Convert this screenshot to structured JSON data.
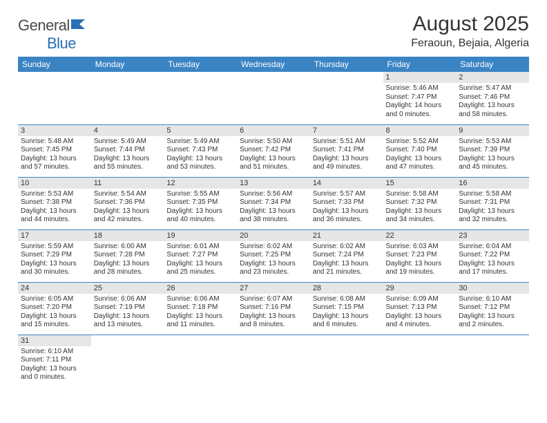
{
  "logo": {
    "text1": "General",
    "text2": "Blue"
  },
  "title": "August 2025",
  "location": "Feraoun, Bejaia, Algeria",
  "weekdays": [
    "Sunday",
    "Monday",
    "Tuesday",
    "Wednesday",
    "Thursday",
    "Friday",
    "Saturday"
  ],
  "header_bg": "#3b84c4",
  "daynum_bg": "#e6e6e6",
  "row_border": "#3b84c4",
  "weeks": [
    [
      null,
      null,
      null,
      null,
      null,
      {
        "d": "1",
        "sr": "5:46 AM",
        "ss": "7:47 PM",
        "dl": "14 hours and 0 minutes."
      },
      {
        "d": "2",
        "sr": "5:47 AM",
        "ss": "7:46 PM",
        "dl": "13 hours and 58 minutes."
      }
    ],
    [
      {
        "d": "3",
        "sr": "5:48 AM",
        "ss": "7:45 PM",
        "dl": "13 hours and 57 minutes."
      },
      {
        "d": "4",
        "sr": "5:49 AM",
        "ss": "7:44 PM",
        "dl": "13 hours and 55 minutes."
      },
      {
        "d": "5",
        "sr": "5:49 AM",
        "ss": "7:43 PM",
        "dl": "13 hours and 53 minutes."
      },
      {
        "d": "6",
        "sr": "5:50 AM",
        "ss": "7:42 PM",
        "dl": "13 hours and 51 minutes."
      },
      {
        "d": "7",
        "sr": "5:51 AM",
        "ss": "7:41 PM",
        "dl": "13 hours and 49 minutes."
      },
      {
        "d": "8",
        "sr": "5:52 AM",
        "ss": "7:40 PM",
        "dl": "13 hours and 47 minutes."
      },
      {
        "d": "9",
        "sr": "5:53 AM",
        "ss": "7:39 PM",
        "dl": "13 hours and 45 minutes."
      }
    ],
    [
      {
        "d": "10",
        "sr": "5:53 AM",
        "ss": "7:38 PM",
        "dl": "13 hours and 44 minutes."
      },
      {
        "d": "11",
        "sr": "5:54 AM",
        "ss": "7:36 PM",
        "dl": "13 hours and 42 minutes."
      },
      {
        "d": "12",
        "sr": "5:55 AM",
        "ss": "7:35 PM",
        "dl": "13 hours and 40 minutes."
      },
      {
        "d": "13",
        "sr": "5:56 AM",
        "ss": "7:34 PM",
        "dl": "13 hours and 38 minutes."
      },
      {
        "d": "14",
        "sr": "5:57 AM",
        "ss": "7:33 PM",
        "dl": "13 hours and 36 minutes."
      },
      {
        "d": "15",
        "sr": "5:58 AM",
        "ss": "7:32 PM",
        "dl": "13 hours and 34 minutes."
      },
      {
        "d": "16",
        "sr": "5:58 AM",
        "ss": "7:31 PM",
        "dl": "13 hours and 32 minutes."
      }
    ],
    [
      {
        "d": "17",
        "sr": "5:59 AM",
        "ss": "7:29 PM",
        "dl": "13 hours and 30 minutes."
      },
      {
        "d": "18",
        "sr": "6:00 AM",
        "ss": "7:28 PM",
        "dl": "13 hours and 28 minutes."
      },
      {
        "d": "19",
        "sr": "6:01 AM",
        "ss": "7:27 PM",
        "dl": "13 hours and 25 minutes."
      },
      {
        "d": "20",
        "sr": "6:02 AM",
        "ss": "7:25 PM",
        "dl": "13 hours and 23 minutes."
      },
      {
        "d": "21",
        "sr": "6:02 AM",
        "ss": "7:24 PM",
        "dl": "13 hours and 21 minutes."
      },
      {
        "d": "22",
        "sr": "6:03 AM",
        "ss": "7:23 PM",
        "dl": "13 hours and 19 minutes."
      },
      {
        "d": "23",
        "sr": "6:04 AM",
        "ss": "7:22 PM",
        "dl": "13 hours and 17 minutes."
      }
    ],
    [
      {
        "d": "24",
        "sr": "6:05 AM",
        "ss": "7:20 PM",
        "dl": "13 hours and 15 minutes."
      },
      {
        "d": "25",
        "sr": "6:06 AM",
        "ss": "7:19 PM",
        "dl": "13 hours and 13 minutes."
      },
      {
        "d": "26",
        "sr": "6:06 AM",
        "ss": "7:18 PM",
        "dl": "13 hours and 11 minutes."
      },
      {
        "d": "27",
        "sr": "6:07 AM",
        "ss": "7:16 PM",
        "dl": "13 hours and 8 minutes."
      },
      {
        "d": "28",
        "sr": "6:08 AM",
        "ss": "7:15 PM",
        "dl": "13 hours and 6 minutes."
      },
      {
        "d": "29",
        "sr": "6:09 AM",
        "ss": "7:13 PM",
        "dl": "13 hours and 4 minutes."
      },
      {
        "d": "30",
        "sr": "6:10 AM",
        "ss": "7:12 PM",
        "dl": "13 hours and 2 minutes."
      }
    ],
    [
      {
        "d": "31",
        "sr": "6:10 AM",
        "ss": "7:11 PM",
        "dl": "13 hours and 0 minutes."
      },
      null,
      null,
      null,
      null,
      null,
      null
    ]
  ],
  "labels": {
    "sunrise": "Sunrise: ",
    "sunset": "Sunset: ",
    "daylight": "Daylight: "
  }
}
